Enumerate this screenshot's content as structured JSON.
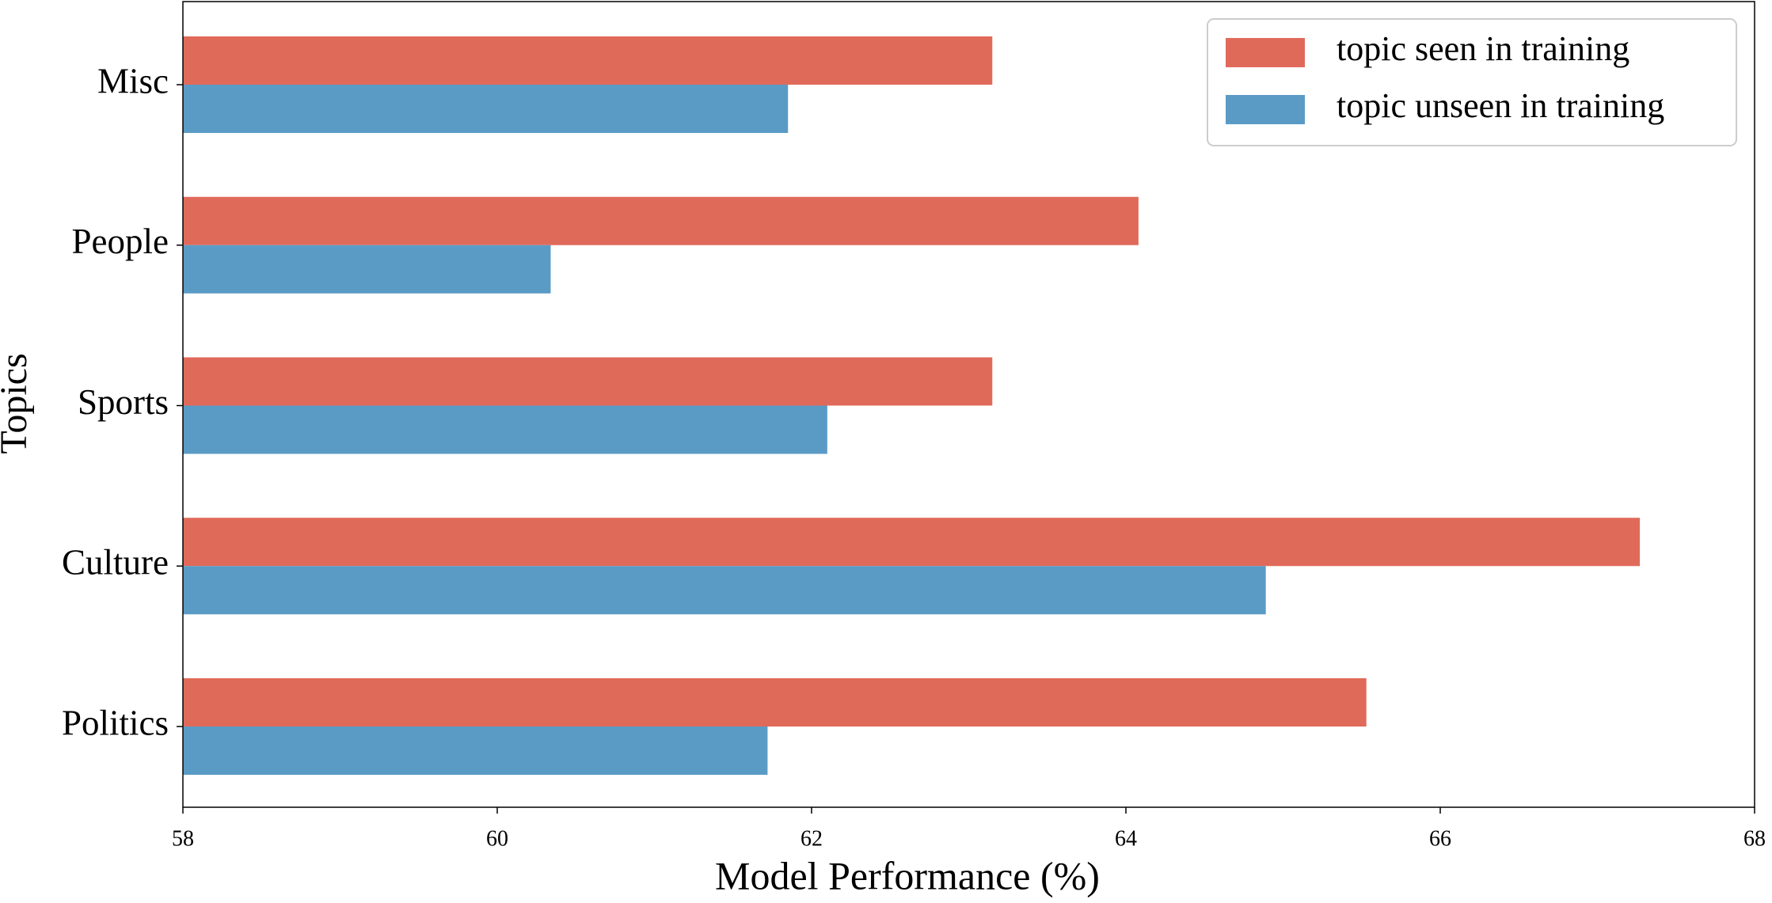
{
  "chart_data": {
    "type": "barh",
    "xlabel": "Model Performance (%)",
    "ylabel": "Topics",
    "categories": [
      "Politics",
      "Culture",
      "Sports",
      "People",
      "Misc"
    ],
    "series": [
      {
        "name": "topic seen in training",
        "color": "#e06a5a",
        "values": [
          65.53,
          67.27,
          63.15,
          64.08,
          63.15
        ]
      },
      {
        "name": "topic unseen in training",
        "color": "#5a9bc6",
        "values": [
          61.72,
          64.89,
          62.1,
          60.34,
          61.85
        ]
      }
    ],
    "xlim": [
      58,
      68
    ],
    "xticks": [
      58,
      60,
      62,
      64,
      66,
      68
    ],
    "legend": "upper right"
  }
}
